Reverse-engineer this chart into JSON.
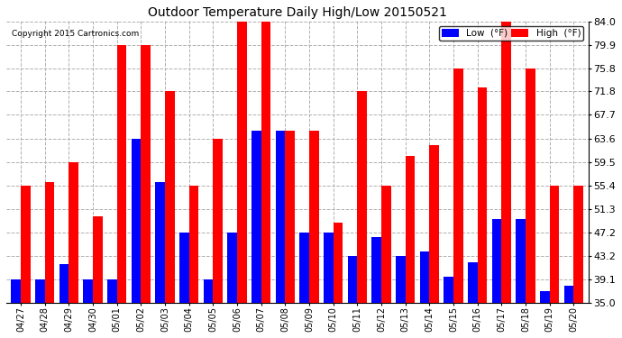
{
  "title": "Outdoor Temperature Daily High/Low 20150521",
  "copyright": "Copyright 2015 Cartronics.com",
  "dates": [
    "04/27",
    "04/28",
    "04/29",
    "04/30",
    "05/01",
    "05/02",
    "05/03",
    "05/04",
    "05/05",
    "05/06",
    "05/07",
    "05/08",
    "05/09",
    "05/10",
    "05/11",
    "05/12",
    "05/13",
    "05/14",
    "05/15",
    "05/16",
    "05/17",
    "05/18",
    "05/19",
    "05/20"
  ],
  "high": [
    55.4,
    56.0,
    59.5,
    50.0,
    79.9,
    79.9,
    71.8,
    55.4,
    63.6,
    84.0,
    84.0,
    65.0,
    65.0,
    49.0,
    71.8,
    55.4,
    60.5,
    62.5,
    75.8,
    72.5,
    84.0,
    75.8,
    55.4,
    55.4
  ],
  "low": [
    39.1,
    39.1,
    41.8,
    39.1,
    39.1,
    63.5,
    56.0,
    47.2,
    39.1,
    47.2,
    65.0,
    65.0,
    47.2,
    47.2,
    43.2,
    46.5,
    43.2,
    44.0,
    39.5,
    42.0,
    49.5,
    49.5,
    37.0,
    38.0
  ],
  "ylim": [
    35.0,
    84.0
  ],
  "yticks": [
    35.0,
    39.1,
    43.2,
    47.2,
    51.3,
    55.4,
    59.5,
    63.6,
    67.7,
    71.8,
    75.8,
    79.9,
    84.0
  ],
  "high_color": "#FF0000",
  "low_color": "#0000FF",
  "bg_color": "#FFFFFF",
  "grid_color": "#B0B0B0",
  "bar_width": 0.4
}
